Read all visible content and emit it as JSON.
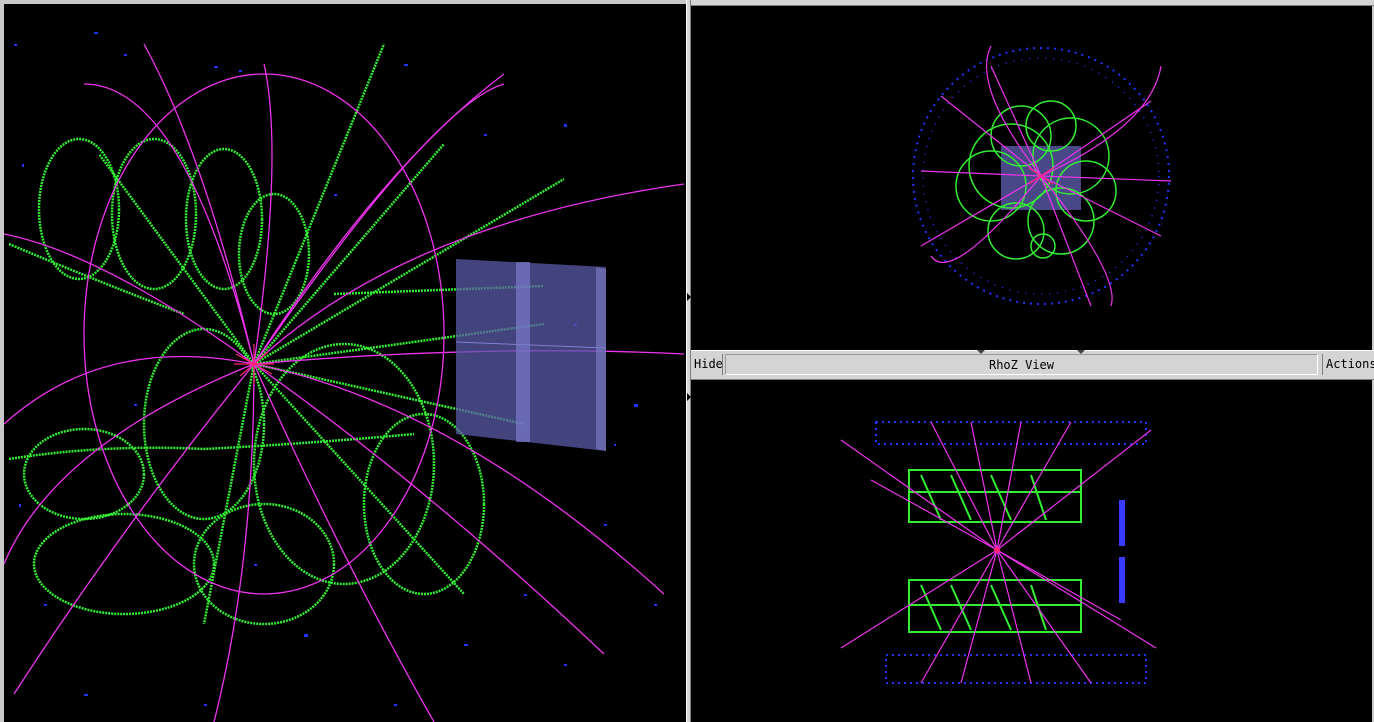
{
  "rhoz_view": {
    "title": "RhoZ View",
    "hide_label": "Hide",
    "actions_label": "Actions"
  },
  "colors": {
    "background": "#000000",
    "tracks_helix": "#33ee33",
    "tracks_charged": "#ee33ee",
    "hits": "#2233ff",
    "calorimeter_box": "#5a5aa8",
    "vertex": "#ff2277",
    "frame": "#d4d4d4"
  },
  "icons": [
    "splitter-arrow-icon",
    "dock-notch-icon"
  ]
}
